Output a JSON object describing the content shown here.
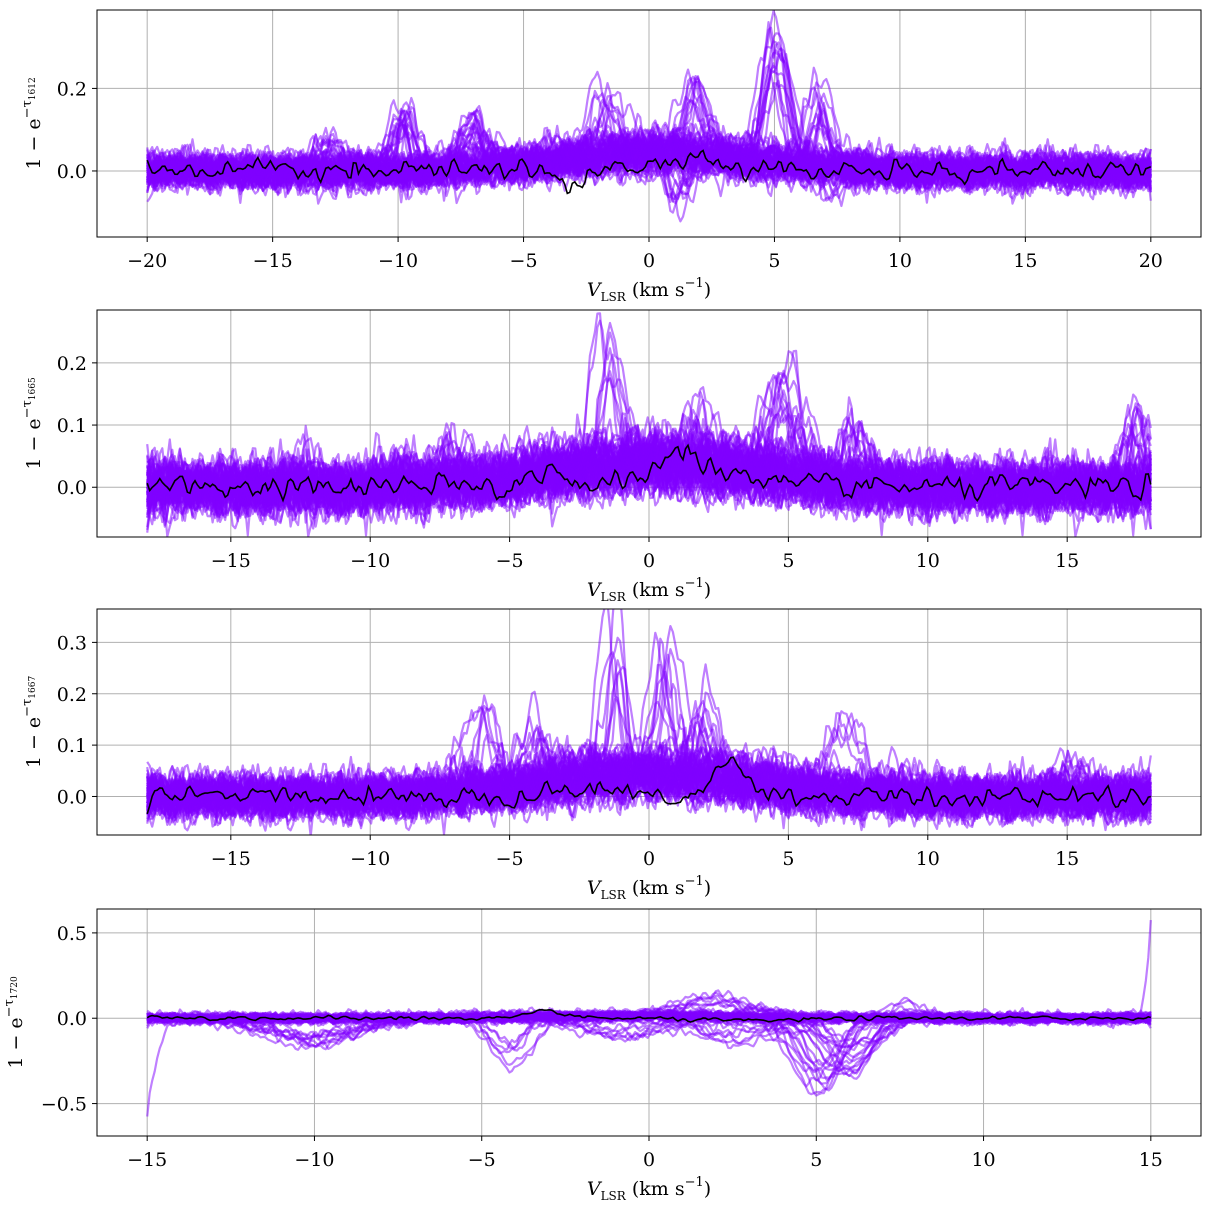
{
  "chart_data": [
    {
      "type": "line",
      "xlim": [
        -22,
        22
      ],
      "ylim": [
        -0.16,
        0.39
      ],
      "xticks": [
        -20,
        -15,
        -10,
        -5,
        0,
        5,
        10,
        15,
        20
      ],
      "xtick_labels": [
        "−20",
        "−15",
        "−10",
        "−5",
        "0",
        "5",
        "10",
        "15",
        "20"
      ],
      "yticks": [
        0.0,
        0.2
      ],
      "ytick_labels": [
        "0.0",
        "0.2"
      ],
      "x_range": [
        -20,
        20
      ],
      "xlabel": {
        "var": "V",
        "sub": "LSR",
        "text": " (km s",
        "sup": "−1",
        "close": ")"
      },
      "ylabel": {
        "text": "1 − e",
        "sup": "−τ",
        "subsup": "1612"
      },
      "grid": true,
      "sample_color": "#7f00ff",
      "sample_noise": 0.02,
      "sample_count": 80,
      "features": [
        {
          "center": 5.0,
          "width": 0.45,
          "amplitude": 0.34
        },
        {
          "center": 6.8,
          "width": 0.4,
          "amplitude": 0.2
        },
        {
          "center": 1.8,
          "width": 0.5,
          "amplitude": 0.18
        },
        {
          "center": -1.8,
          "width": 0.5,
          "amplitude": 0.15
        },
        {
          "center": -9.8,
          "width": 0.4,
          "amplitude": 0.15
        },
        {
          "center": -7.0,
          "width": 0.5,
          "amplitude": 0.13
        },
        {
          "center": -12.5,
          "width": 0.4,
          "amplitude": 0.08
        },
        {
          "center": 1.3,
          "width": 0.4,
          "amplitude": -0.12
        },
        {
          "center": 7.2,
          "width": 0.4,
          "amplitude": -0.1
        }
      ],
      "mean_line": {
        "color": "#000000",
        "noise": 0.011,
        "components": [
          {
            "center": 1.5,
            "width": 1.5,
            "amplitude": 0.025
          },
          {
            "center": -3.0,
            "width": 0.4,
            "amplitude": -0.03
          }
        ]
      }
    },
    {
      "type": "line",
      "xlim": [
        -19.8,
        19.8
      ],
      "ylim": [
        -0.08,
        0.285
      ],
      "xticks": [
        -15,
        -10,
        -5,
        0,
        5,
        10,
        15
      ],
      "xtick_labels": [
        "−15",
        "−10",
        "−5",
        "0",
        "5",
        "10",
        "15"
      ],
      "yticks": [
        0.0,
        0.1,
        0.2
      ],
      "ytick_labels": [
        "0.0",
        "0.1",
        "0.2"
      ],
      "x_range": [
        -18,
        18
      ],
      "xlabel": {
        "var": "V",
        "sub": "LSR",
        "text": " (km s",
        "sup": "−1",
        "close": ")"
      },
      "ylabel": {
        "text": "1 − e",
        "sup": "−τ",
        "subsup": "1665"
      },
      "grid": true,
      "sample_color": "#7f00ff",
      "sample_noise": 0.02,
      "sample_count": 80,
      "features": [
        {
          "center": -1.5,
          "width": 0.35,
          "amplitude": 0.23
        },
        {
          "center": 4.8,
          "width": 0.6,
          "amplitude": 0.16
        },
        {
          "center": 2.0,
          "width": 0.7,
          "amplitude": 0.12
        },
        {
          "center": 17.4,
          "width": 0.35,
          "amplitude": 0.12
        },
        {
          "center": 7.5,
          "width": 0.4,
          "amplitude": 0.1
        },
        {
          "center": -7.0,
          "width": 0.5,
          "amplitude": 0.07
        },
        {
          "center": -12.5,
          "width": 0.3,
          "amplitude": 0.05
        },
        {
          "center": -9.0,
          "width": 0.4,
          "amplitude": 0.05
        }
      ],
      "mean_line": {
        "color": "#000000",
        "noise": 0.009,
        "components": [
          {
            "center": 1.1,
            "width": 0.9,
            "amplitude": 0.055
          },
          {
            "center": -3.5,
            "width": 0.6,
            "amplitude": 0.03
          },
          {
            "center": 3.5,
            "width": 0.8,
            "amplitude": 0.02
          }
        ]
      }
    },
    {
      "type": "line",
      "xlim": [
        -19.8,
        19.8
      ],
      "ylim": [
        -0.075,
        0.365
      ],
      "xticks": [
        -15,
        -10,
        -5,
        0,
        5,
        10,
        15
      ],
      "xtick_labels": [
        "−15",
        "−10",
        "−5",
        "0",
        "5",
        "10",
        "15"
      ],
      "yticks": [
        0.0,
        0.1,
        0.2,
        0.3
      ],
      "ytick_labels": [
        "0.0",
        "0.1",
        "0.2",
        "0.3"
      ],
      "x_range": [
        -18,
        18
      ],
      "xlabel": {
        "var": "V",
        "sub": "LSR",
        "text": " (km s",
        "sup": "−1",
        "close": ")"
      },
      "ylabel": {
        "text": "1 − e",
        "sup": "−τ",
        "subsup": "1667"
      },
      "grid": true,
      "sample_color": "#7f00ff",
      "sample_noise": 0.02,
      "sample_count": 80,
      "features": [
        {
          "center": -1.3,
          "width": 0.3,
          "amplitude": 0.32
        },
        {
          "center": 0.6,
          "width": 0.3,
          "amplitude": 0.29
        },
        {
          "center": 1.9,
          "width": 0.35,
          "amplitude": 0.18
        },
        {
          "center": -6.0,
          "width": 0.5,
          "amplitude": 0.14
        },
        {
          "center": 6.8,
          "width": 0.6,
          "amplitude": 0.14
        },
        {
          "center": -4.0,
          "width": 0.5,
          "amplitude": 0.1
        },
        {
          "center": 15.2,
          "width": 0.5,
          "amplitude": 0.07
        },
        {
          "center": 9.0,
          "width": 0.5,
          "amplitude": 0.06
        }
      ],
      "mean_line": {
        "color": "#000000",
        "noise": 0.009,
        "components": [
          {
            "center": 2.9,
            "width": 0.55,
            "amplitude": 0.07
          },
          {
            "center": -2.5,
            "width": 1.5,
            "amplitude": 0.015
          }
        ]
      }
    },
    {
      "type": "line",
      "xlim": [
        -16.5,
        16.5
      ],
      "ylim": [
        -0.69,
        0.64
      ],
      "xticks": [
        -15,
        -10,
        -5,
        0,
        5,
        10,
        15
      ],
      "xtick_labels": [
        "−15",
        "−10",
        "−5",
        "0",
        "5",
        "10",
        "15"
      ],
      "yticks": [
        -0.5,
        0.0,
        0.5
      ],
      "ytick_labels": [
        "−0.5",
        "0.0",
        "0.5"
      ],
      "x_range": [
        -15,
        15
      ],
      "xlabel": {
        "var": "V",
        "sub": "LSR",
        "text": " (km s",
        "sup": "−1",
        "close": ")"
      },
      "ylabel": {
        "text": "1 − e",
        "sup": "−τ",
        "subsup": "1720"
      },
      "grid": true,
      "sample_color": "#7f00ff",
      "sample_noise": 0.015,
      "sample_count": 60,
      "features": [
        {
          "center": 5.0,
          "width": 0.6,
          "amplitude": -0.44
        },
        {
          "center": 6.0,
          "width": 0.7,
          "amplitude": -0.3
        },
        {
          "center": -4.3,
          "width": 0.5,
          "amplitude": -0.3
        },
        {
          "center": -10.0,
          "width": 1.2,
          "amplitude": -0.16
        },
        {
          "center": 2.0,
          "width": 1.0,
          "amplitude": 0.11
        },
        {
          "center": 7.5,
          "width": 0.6,
          "amplitude": 0.1
        },
        {
          "center": -1.0,
          "width": 1.5,
          "amplitude": -0.13
        },
        {
          "center": 2.5,
          "width": 1.2,
          "amplitude": -0.15
        }
      ],
      "edge_spikes": [
        {
          "x": -15.0,
          "value": -0.62
        },
        {
          "x": 15.0,
          "value": 0.57
        }
      ],
      "mean_line": {
        "color": "#000000",
        "noise": 0.006,
        "components": [
          {
            "center": -3.0,
            "width": 0.5,
            "amplitude": 0.04
          },
          {
            "center": 3.0,
            "width": 1.5,
            "amplitude": -0.015
          }
        ]
      }
    }
  ]
}
